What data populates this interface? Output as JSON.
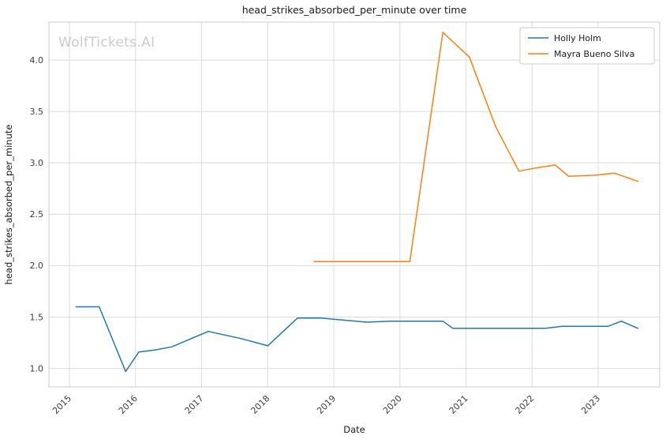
{
  "watermark": "WolfTickets.AI",
  "chart_data": {
    "type": "line",
    "title": "head_strikes_absorbed_per_minute over time",
    "xlabel": "Date",
    "ylabel": "head_strikes_absorbed_per_minute",
    "xlim": [
      2014.69,
      2023.93
    ],
    "ylim": [
      0.82,
      4.37
    ],
    "xticks": [
      2015,
      2016,
      2017,
      2018,
      2019,
      2020,
      2021,
      2022,
      2023
    ],
    "yticks": [
      1.0,
      1.5,
      2.0,
      2.5,
      3.0,
      3.5,
      4.0
    ],
    "grid": true,
    "grid_color": "#dcdcdc",
    "spine_color": "#cccccc",
    "legend_position": "upper-right",
    "series": [
      {
        "name": "Holly Holm",
        "color": "#1f77b4",
        "x": [
          2015.1,
          2015.45,
          2015.85,
          2016.05,
          2016.3,
          2016.55,
          2017.1,
          2017.6,
          2018.0,
          2018.45,
          2018.8,
          2019.15,
          2019.5,
          2019.85,
          2020.3,
          2020.65,
          2020.8,
          2021.3,
          2021.9,
          2022.2,
          2022.45,
          2022.9,
          2023.15,
          2023.35,
          2023.6
        ],
        "y": [
          1.6,
          1.6,
          0.97,
          1.16,
          1.18,
          1.21,
          1.36,
          1.29,
          1.22,
          1.49,
          1.49,
          1.47,
          1.45,
          1.46,
          1.46,
          1.46,
          1.39,
          1.39,
          1.39,
          1.39,
          1.41,
          1.41,
          1.41,
          1.46,
          1.39
        ]
      },
      {
        "name": "Mayra Bueno Silva",
        "color": "#ff7f0e",
        "x": [
          2018.7,
          2019.2,
          2019.7,
          2020.15,
          2020.65,
          2021.05,
          2021.45,
          2021.8,
          2022.05,
          2022.35,
          2022.55,
          2022.95,
          2023.25,
          2023.6
        ],
        "y": [
          2.04,
          2.04,
          2.04,
          2.04,
          4.27,
          4.03,
          3.35,
          2.92,
          2.95,
          2.98,
          2.87,
          2.88,
          2.9,
          2.82
        ]
      }
    ]
  }
}
